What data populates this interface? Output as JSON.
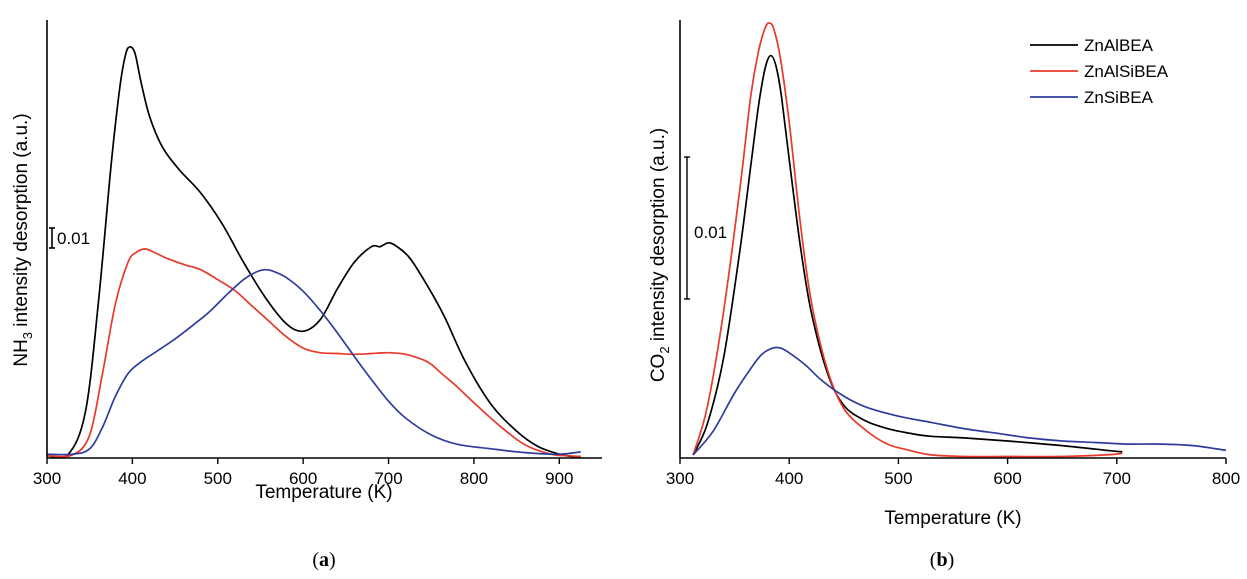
{
  "colors": {
    "black": "#000000",
    "red": "#e8392b",
    "blue": "#2e3d9c"
  },
  "panels": {
    "a": {
      "label_open": "(",
      "label_bold": "a",
      "label_close": ")",
      "xlabel": "Temperature (K)",
      "ylabel_main": "NH",
      "ylabel_sub": "3",
      "ylabel_rest": " intensity desorption (a.u.)",
      "scale_label": "0.01"
    },
    "b": {
      "label_open": "(",
      "label_bold": "b",
      "label_close": ")",
      "xlabel": "Temperature (K)",
      "ylabel_main": "CO",
      "ylabel_sub": "2",
      "ylabel_rest": " intensity desorption (a.u.)",
      "scale_label": "0.01"
    }
  },
  "chart_data": [
    {
      "type": "line",
      "xlabel": "Temperature (K)",
      "ylabel": "NH3 intensity desorption (a.u.)",
      "xlim": [
        300,
        950
      ],
      "ylim": [
        0,
        0.057
      ],
      "xticks": [
        "300",
        "400",
        "500",
        "600",
        "700",
        "800",
        "900"
      ],
      "scale_bar": "0.01",
      "grid": false,
      "series": [
        {
          "color": "#000000",
          "x": [
            300,
            325,
            345,
            360,
            375,
            385,
            392,
            397,
            403,
            410,
            420,
            435,
            455,
            480,
            505,
            530,
            555,
            580,
            600,
            620,
            640,
            660,
            680,
            690,
            700,
            710,
            725,
            745,
            765,
            790,
            820,
            850,
            875,
            900,
            915,
            925
          ],
          "y": [
            0.0003,
            0.0005,
            0.006,
            0.02,
            0.038,
            0.048,
            0.0525,
            0.0535,
            0.0527,
            0.049,
            0.0445,
            0.0405,
            0.0375,
            0.0345,
            0.0305,
            0.0255,
            0.021,
            0.0175,
            0.0165,
            0.018,
            0.022,
            0.0255,
            0.0275,
            0.0275,
            0.028,
            0.0275,
            0.026,
            0.0225,
            0.0185,
            0.0125,
            0.007,
            0.0035,
            0.0015,
            0.0005,
            0.0002,
            0.0002
          ]
        },
        {
          "color": "#e8392b",
          "x": [
            300,
            330,
            350,
            365,
            380,
            395,
            405,
            415,
            425,
            440,
            460,
            480,
            500,
            520,
            540,
            560,
            580,
            600,
            620,
            640,
            660,
            680,
            700,
            720,
            740,
            750,
            760,
            780,
            800,
            830,
            860,
            890,
            910,
            925
          ],
          "y": [
            0.0003,
            0.0004,
            0.003,
            0.011,
            0.02,
            0.0255,
            0.0268,
            0.0272,
            0.0268,
            0.026,
            0.0252,
            0.0245,
            0.0232,
            0.0218,
            0.0198,
            0.0178,
            0.0158,
            0.0143,
            0.0137,
            0.0136,
            0.0135,
            0.0136,
            0.0137,
            0.0135,
            0.0128,
            0.0122,
            0.0112,
            0.0093,
            0.0072,
            0.0042,
            0.0017,
            0.0005,
            0.0003,
            0.0002
          ]
        },
        {
          "color": "#2e3d9c",
          "x": [
            300,
            330,
            350,
            365,
            380,
            395,
            410,
            430,
            450,
            470,
            490,
            510,
            530,
            545,
            555,
            565,
            580,
            600,
            620,
            640,
            660,
            680,
            700,
            720,
            750,
            780,
            820,
            860,
            900,
            925
          ],
          "y": [
            0.0005,
            0.0005,
            0.0012,
            0.004,
            0.008,
            0.011,
            0.0125,
            0.014,
            0.0155,
            0.0172,
            0.019,
            0.0212,
            0.0232,
            0.0242,
            0.0245,
            0.0243,
            0.0235,
            0.0217,
            0.0192,
            0.0163,
            0.0132,
            0.0102,
            0.0074,
            0.0052,
            0.003,
            0.0018,
            0.0012,
            0.0007,
            0.0005,
            0.0008
          ]
        }
      ]
    },
    {
      "type": "line",
      "xlabel": "Temperature (K)",
      "ylabel": "CO2 intensity desorption (a.u.)",
      "xlim": [
        300,
        800
      ],
      "ylim": [
        0,
        0.0283
      ],
      "xticks": [
        "300",
        "400",
        "500",
        "600",
        "700",
        "800"
      ],
      "scale_bar": "0.01",
      "grid": false,
      "legend_position": "top-right",
      "series": [
        {
          "name": "ZnAlBEA",
          "color": "#000000",
          "x": [
            312,
            325,
            340,
            355,
            365,
            372,
            378,
            383,
            388,
            393,
            400,
            410,
            420,
            435,
            450,
            470,
            490,
            510,
            530,
            560,
            600,
            650,
            690,
            705
          ],
          "y": [
            0.0002,
            0.0022,
            0.0065,
            0.0135,
            0.019,
            0.0228,
            0.0252,
            0.026,
            0.0253,
            0.0233,
            0.0193,
            0.0138,
            0.0095,
            0.0055,
            0.0034,
            0.0024,
            0.0019,
            0.0016,
            0.0014,
            0.0013,
            0.0011,
            0.0008,
            0.0005,
            0.0004
          ]
        },
        {
          "name": "ZnAlSiBEA",
          "color": "#e8392b",
          "x": [
            312,
            325,
            340,
            355,
            365,
            372,
            378,
            382,
            386,
            392,
            400,
            410,
            420,
            435,
            450,
            470,
            490,
            510,
            530,
            560,
            600,
            650,
            690,
            705
          ],
          "y": [
            0.0002,
            0.0033,
            0.0095,
            0.0175,
            0.0235,
            0.0263,
            0.0278,
            0.0281,
            0.0277,
            0.0258,
            0.0217,
            0.0153,
            0.0102,
            0.0057,
            0.0032,
            0.0018,
            0.0009,
            0.0005,
            0.0002,
            0.0001,
            0.0001,
            0.0001,
            0.0002,
            0.0003
          ]
        },
        {
          "name": "ZnSiBEA",
          "color": "#2e3d9c",
          "x": [
            312,
            330,
            350,
            365,
            375,
            385,
            392,
            400,
            415,
            430,
            450,
            470,
            500,
            530,
            560,
            590,
            620,
            650,
            680,
            710,
            740,
            770,
            800
          ],
          "y": [
            0.0002,
            0.0017,
            0.0042,
            0.0058,
            0.0067,
            0.0071,
            0.0071,
            0.0068,
            0.006,
            0.005,
            0.004,
            0.0033,
            0.0027,
            0.0023,
            0.0019,
            0.0016,
            0.0013,
            0.0011,
            0.001,
            0.0009,
            0.0009,
            0.0008,
            0.0005
          ]
        }
      ]
    }
  ]
}
